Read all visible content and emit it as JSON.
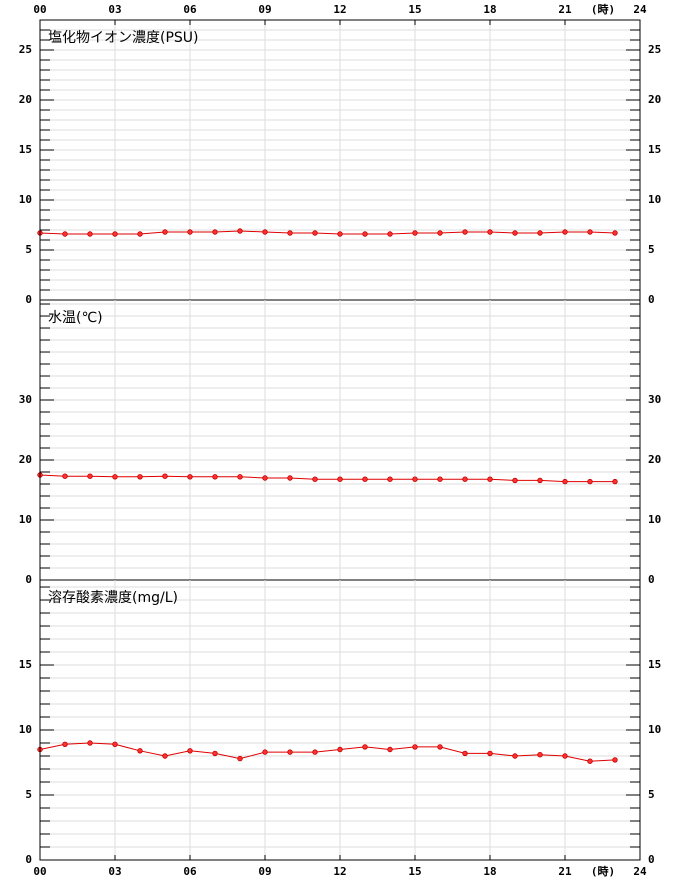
{
  "chart_data": [
    {
      "type": "line",
      "title": "塩化物イオン濃度(PSU)",
      "x_label": "(時)",
      "color": "#e00000",
      "x": [
        0,
        1,
        2,
        3,
        4,
        5,
        6,
        7,
        8,
        9,
        10,
        11,
        12,
        13,
        14,
        15,
        16,
        17,
        18,
        19,
        20,
        21,
        22,
        23
      ],
      "values": [
        6.7,
        6.6,
        6.6,
        6.6,
        6.6,
        6.8,
        6.8,
        6.8,
        6.9,
        6.8,
        6.7,
        6.7,
        6.6,
        6.6,
        6.6,
        6.7,
        6.7,
        6.8,
        6.8,
        6.7,
        6.7,
        6.8,
        6.8,
        6.7
      ],
      "xlim": [
        0,
        24
      ],
      "xticks": [
        {
          "value": 0,
          "label": "00"
        },
        {
          "value": 3,
          "label": "03"
        },
        {
          "value": 6,
          "label": "06"
        },
        {
          "value": 9,
          "label": "09"
        },
        12,
        15,
        18,
        21,
        24
      ],
      "ylim": [
        0,
        28
      ],
      "yticks": [
        0,
        5,
        10,
        15,
        20,
        25
      ],
      "ygrid_step": 1
    },
    {
      "type": "line",
      "title": "水温(℃)",
      "color": "#e00000",
      "x": [
        0,
        1,
        2,
        3,
        4,
        5,
        6,
        7,
        8,
        9,
        10,
        11,
        12,
        13,
        14,
        15,
        16,
        17,
        18,
        19,
        20,
        21,
        22,
        23
      ],
      "values": [
        17.5,
        17.3,
        17.3,
        17.2,
        17.2,
        17.3,
        17.2,
        17.2,
        17.2,
        17.0,
        17.0,
        16.8,
        16.8,
        16.8,
        16.8,
        16.8,
        16.8,
        16.8,
        16.8,
        16.6,
        16.6,
        16.4,
        16.4,
        16.4
      ],
      "xlim": [
        0,
        24
      ],
      "xticks": [
        0,
        3,
        6,
        9,
        12,
        15,
        18,
        21,
        24
      ],
      "ylim": [
        0,
        46.67
      ],
      "yticks": [
        0,
        10,
        20,
        30
      ],
      "ygrid_step": 2
    },
    {
      "type": "line",
      "title": "溶存酸素濃度(mg/L)",
      "x_label": "(時)",
      "color": "#e00000",
      "x": [
        0,
        1,
        2,
        3,
        4,
        5,
        6,
        7,
        8,
        9,
        10,
        11,
        12,
        13,
        14,
        15,
        16,
        17,
        18,
        19,
        20,
        21,
        22,
        23
      ],
      "values": [
        8.5,
        8.9,
        9.0,
        8.9,
        8.4,
        8.0,
        8.4,
        8.2,
        7.8,
        8.3,
        8.3,
        8.3,
        8.5,
        8.7,
        8.5,
        8.7,
        8.7,
        8.2,
        8.2,
        8.0,
        8.1,
        8.0,
        7.6,
        7.7
      ],
      "xlim": [
        0,
        24
      ],
      "xticks": [
        {
          "value": 0,
          "label": "00"
        },
        {
          "value": 3,
          "label": "03"
        },
        {
          "value": 6,
          "label": "06"
        },
        {
          "value": 9,
          "label": "09"
        },
        12,
        15,
        18,
        21,
        24
      ],
      "ylim": [
        0,
        21.54
      ],
      "yticks": [
        0,
        5,
        10,
        15
      ],
      "ygrid_step": 1
    }
  ]
}
